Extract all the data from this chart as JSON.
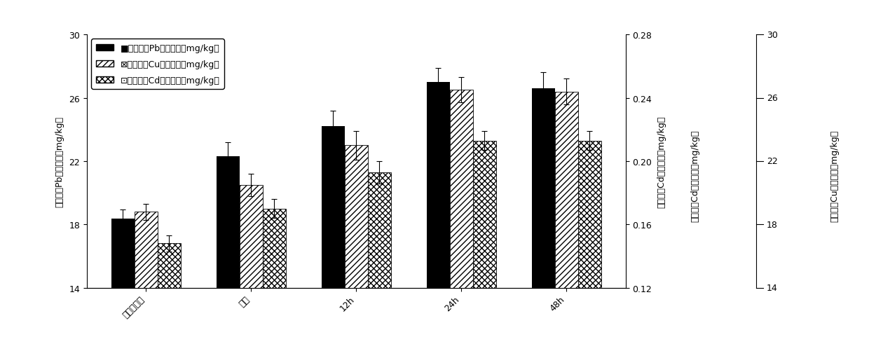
{
  "categories": [
    "无喷洒对照",
    "立即",
    "12h",
    "24h",
    "48h"
  ],
  "pb_values": [
    18.35,
    22.3,
    24.2,
    27.0,
    26.6
  ],
  "cu_values": [
    18.8,
    20.5,
    23.0,
    26.5,
    26.4
  ],
  "cd_values": [
    16.8,
    19.0,
    21.3,
    23.3,
    23.3
  ],
  "pb_errors": [
    0.6,
    0.9,
    1.0,
    0.9,
    1.0
  ],
  "cu_errors": [
    0.5,
    0.7,
    0.9,
    0.8,
    0.8
  ],
  "cd_errors": [
    0.5,
    0.6,
    0.7,
    0.6,
    0.6
  ],
  "ylabel_left": "叶片钓（Pb）富集量（mg/kg）",
  "ylabel_cd": "叶片镌（Cd）富集量（mg/kg）",
  "ylabel_cu": "叶片铜（Cu）富集量（mg/kg）",
  "ylim": [
    14,
    30
  ],
  "yticks": [
    14,
    18,
    22,
    26,
    30
  ],
  "cd_ylim": [
    0.12,
    0.28
  ],
  "cd_yticks": [
    0.12,
    0.16,
    0.2,
    0.24,
    0.28
  ],
  "cu_ylim": [
    14,
    30
  ],
  "cu_yticks": [
    14,
    18,
    22,
    26,
    30
  ],
  "legend_pb": "叶片钓（Pb）富集量（mg/kg）",
  "legend_cu": "叶片铜（Cu）富集量（mg/kg）",
  "legend_cd": "叶片镌（Cd）富集量（mg/kg）",
  "bar_width": 0.22,
  "background_color": "#ffffff",
  "label_fontsize": 9,
  "tick_fontsize": 9,
  "legend_fontsize": 9
}
